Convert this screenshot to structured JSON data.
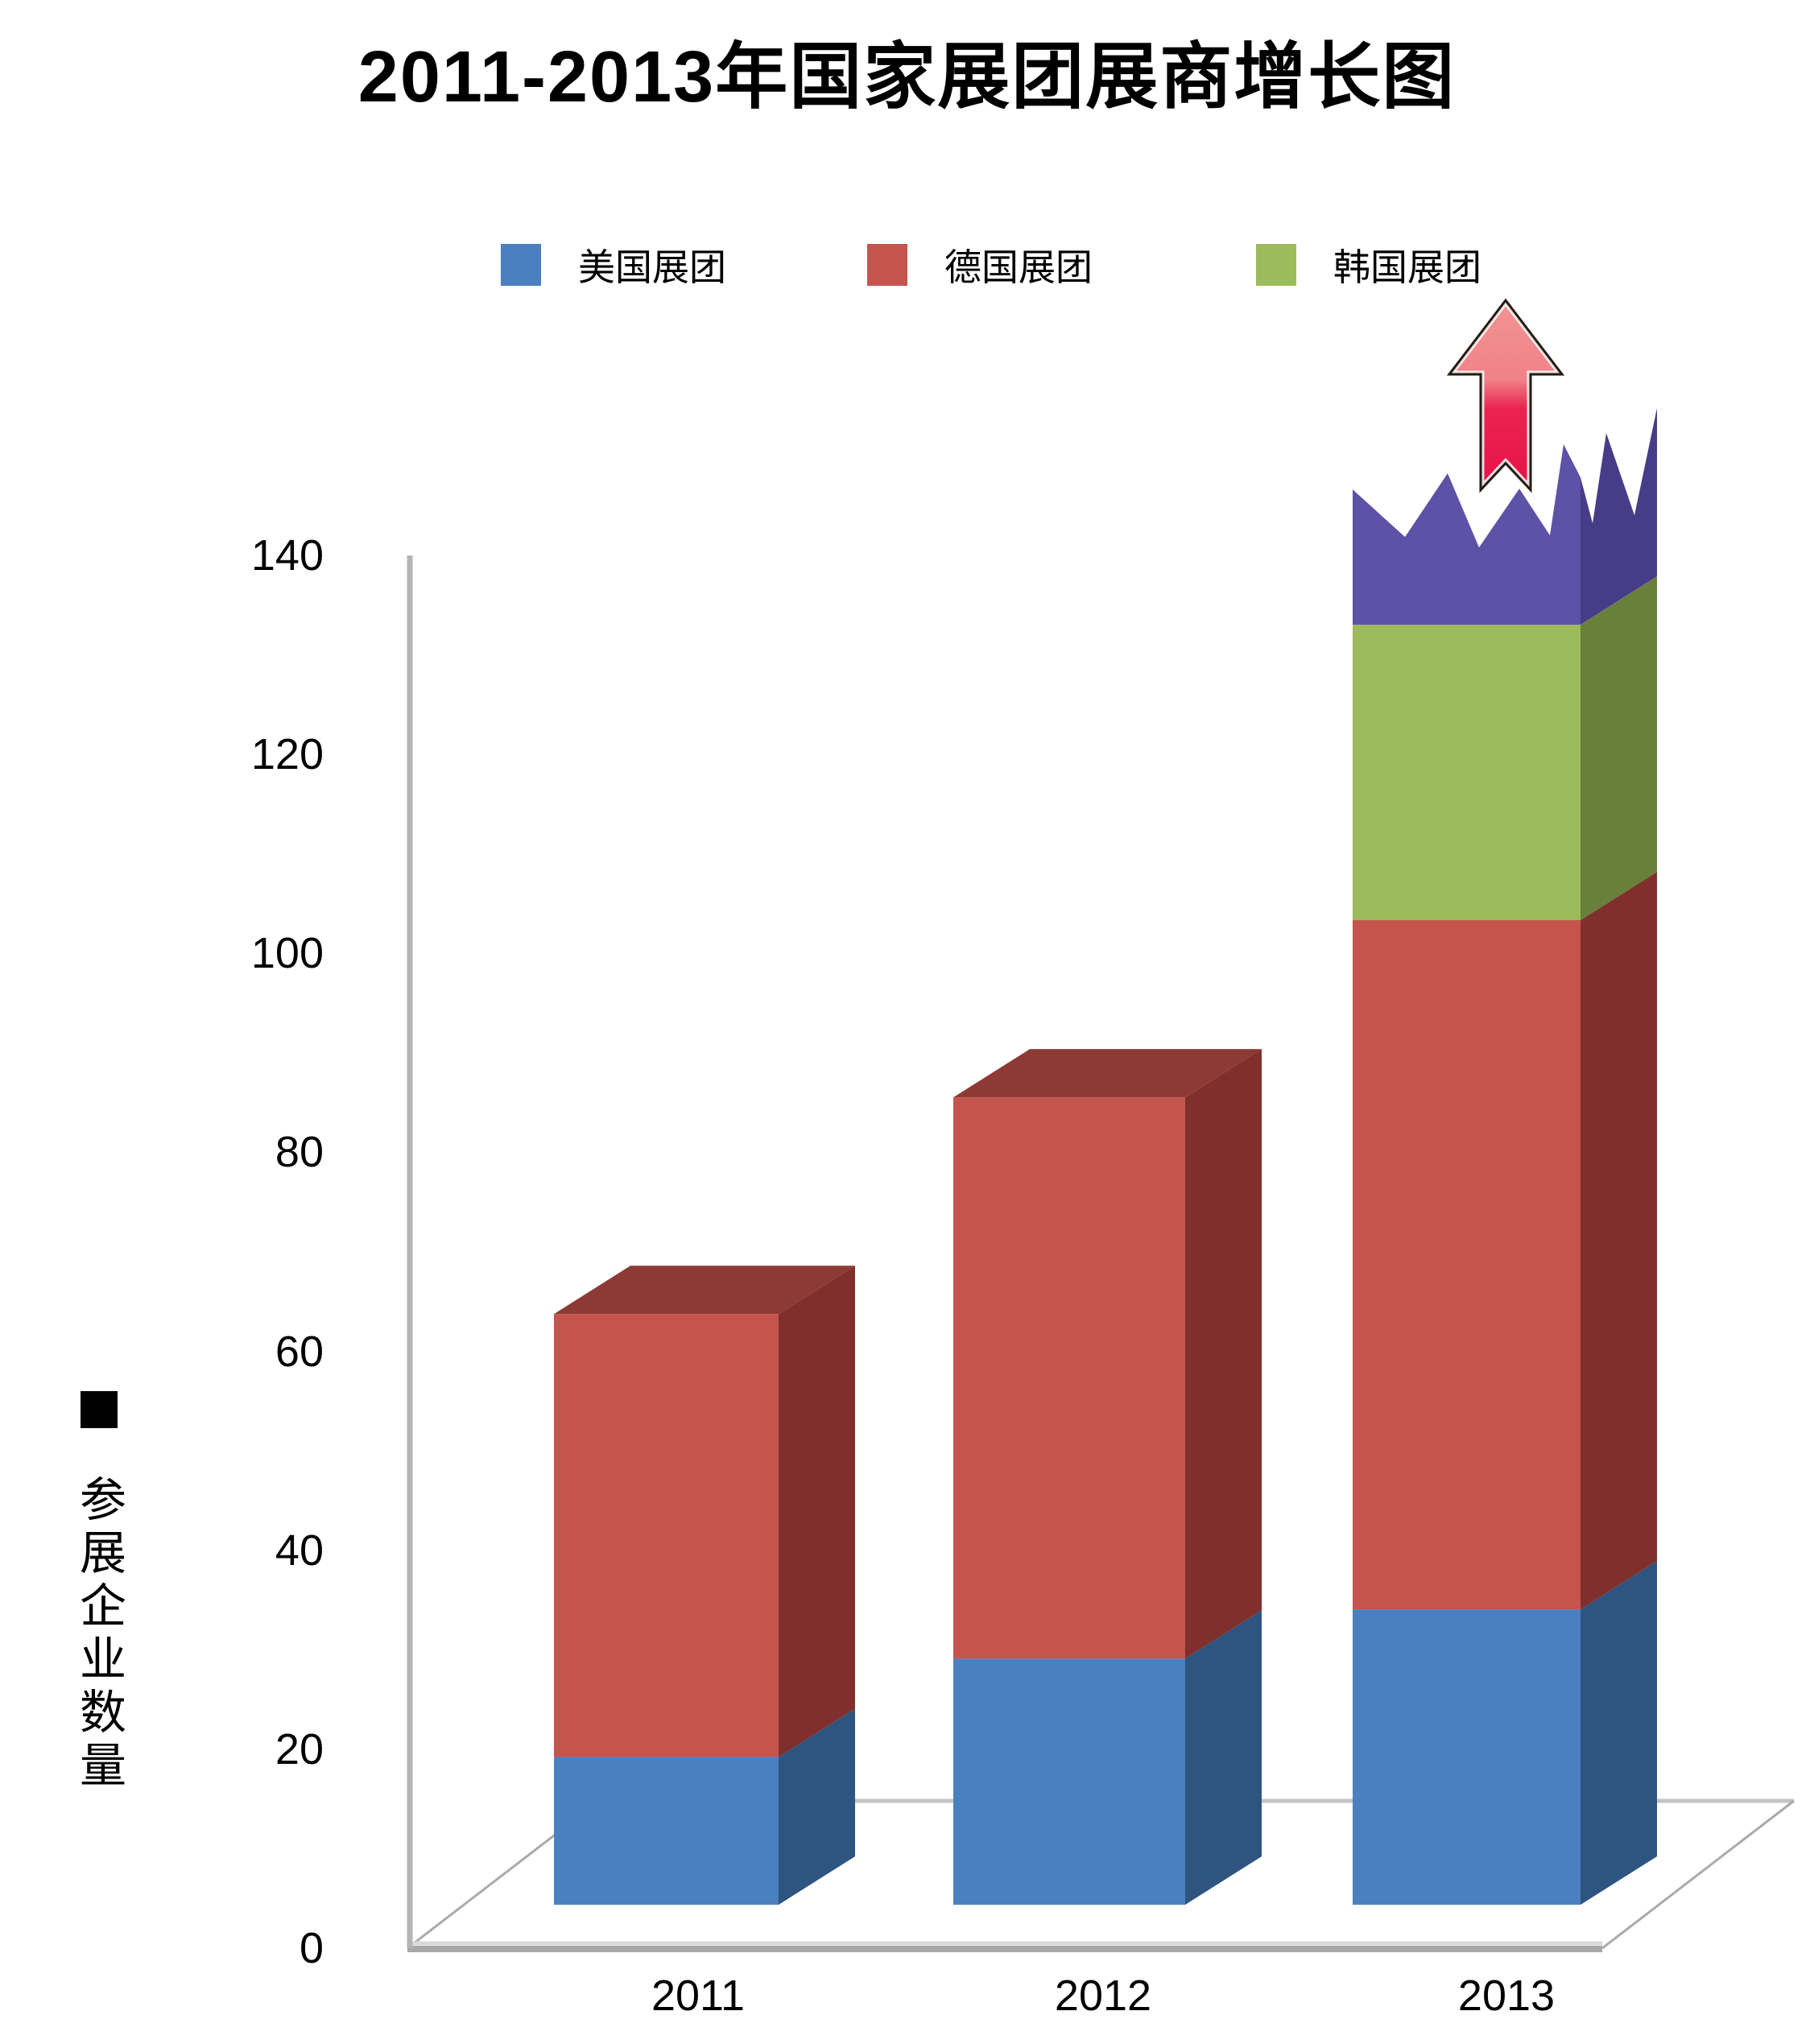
{
  "title": "2011-2013年国家展团展商增长图",
  "y_axis": {
    "label": "参展企业数量",
    "marker": "■",
    "ticks": [
      0,
      20,
      40,
      60,
      80,
      100,
      120,
      140
    ]
  },
  "x_axis": {
    "categories": [
      "2011",
      "2012",
      "2013"
    ]
  },
  "legend": {
    "items": [
      "美国展团",
      "德国展团",
      "韩国展团"
    ]
  },
  "chart_data": {
    "type": "bar",
    "stacked": true,
    "style": "3d-column-infographic",
    "title": "2011-2013年国家展团展商增长图",
    "categories": [
      "2011",
      "2012",
      "2013"
    ],
    "series": [
      {
        "name": "美国展团",
        "color": "#4a80c0",
        "side_color": "#2e5480",
        "top_color": "#3f6da3",
        "values": [
          15,
          25,
          30
        ]
      },
      {
        "name": "德国展团",
        "color": "#c5544f",
        "side_color": "#7f302d",
        "top_color": "#8d3a34",
        "values": [
          45,
          57,
          70
        ]
      },
      {
        "name": "韩国展团",
        "color": "#9cbb5b",
        "side_color": "#68803a",
        "top_color": "#7fa04a",
        "values": [
          0,
          0,
          30
        ]
      }
    ],
    "totals": [
      60,
      82,
      130
    ],
    "ylabel": "参展企业数量",
    "ylim": [
      0,
      140
    ],
    "tick_step": 20,
    "grid": false,
    "legend_position": "top",
    "overflow": {
      "category": "2013",
      "description": "jagged torn-top purple section above 130 with upward red arrow, growth beyond axis",
      "approx_peak_value": 150,
      "front_color": "#5d52a5",
      "side_color": "#473c87",
      "arrow_gradient": [
        "#f29392",
        "#f08288",
        "#eb2350",
        "#e8134a"
      ],
      "arrow_outline": "#241b12",
      "arrow_inner_rim": "#ffffff"
    }
  },
  "colors": {
    "background": "#ffffff",
    "axis_line": "#b5b5b5",
    "floor_front_edge": "#a8a8a8",
    "floor_front_edge_light": "#d9d9d9",
    "floor_back_edge": "#c4c4c4",
    "floor_diagonal": "#aaaaaa",
    "text": "#000000"
  }
}
